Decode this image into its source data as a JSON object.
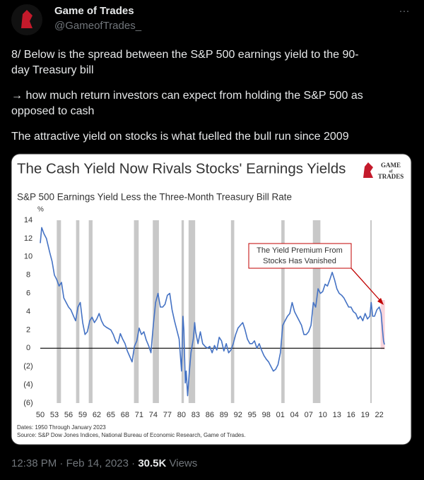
{
  "header": {
    "name": "Game of Trades",
    "handle": "@GameofTrades_",
    "menu": "···"
  },
  "tweet_lines": [
    "8/ Below is the spread between the S&P 500 earnings yield to the 90-",
    "day Treasury bill",
    "→ how much return investors can expect from holding the S&P 500 as",
    "opposed to cash",
    "The attractive yield on stocks is what fuelled the bull run since 2009"
  ],
  "footer": {
    "time": "12:38 PM",
    "separator": "·",
    "date": "Feb 14, 2023",
    "views": "30.5K",
    "views_label": "Views"
  },
  "chart_data": {
    "type": "line",
    "title": "The Cash Yield Now Rivals Stocks' Earnings Yields",
    "logo_text": [
      "GAME",
      "of",
      "TRADES"
    ],
    "subtitle": "S&P 500 Earnings Yield Less the Three-Month Treasury Bill Rate",
    "y_unit": "%",
    "notes": [
      "Dates: 1950 Through January 2023",
      "Source: S&P Dow Jones Indices, National Bureau of Economic Research, Game of Trades."
    ],
    "annotation": [
      "The Yield Premium From",
      "Stocks Has Vanished"
    ],
    "x": [
      1950,
      1950.3,
      1950.8,
      1951.3,
      1952,
      1952.5,
      1953,
      1953.5,
      1954,
      1954.5,
      1955,
      1955.5,
      1956,
      1956.5,
      1957,
      1957.5,
      1958,
      1958.5,
      1959,
      1959.5,
      1960,
      1960.5,
      1961,
      1961.5,
      1962,
      1962.5,
      1963,
      1963.5,
      1964,
      1965,
      1965.5,
      1966,
      1966.5,
      1967,
      1967.5,
      1968,
      1968.5,
      1969,
      1969.5,
      1970,
      1970.5,
      1971,
      1971.5,
      1972,
      1972.5,
      1973,
      1973.5,
      1974,
      1974.5,
      1975,
      1975.5,
      1976,
      1976.5,
      1977,
      1977.5,
      1978,
      1978.5,
      1979,
      1979.5,
      1980,
      1980.3,
      1980.5,
      1980.8,
      1981,
      1981.3,
      1981.6,
      1982,
      1982.5,
      1982.8,
      1983,
      1983.5,
      1984,
      1984.5,
      1985,
      1985.5,
      1986,
      1986.5,
      1987,
      1987.5,
      1988,
      1988.5,
      1989,
      1989.5,
      1990,
      1990.5,
      1991,
      1991.5,
      1992,
      1992.5,
      1993,
      1993.5,
      1994,
      1994.5,
      1995,
      1995.5,
      1996,
      1996.5,
      1997,
      1997.5,
      1998,
      1998.5,
      1999,
      1999.5,
      2000,
      2000.5,
      2001,
      2001.5,
      2002,
      2002.5,
      2003,
      2003.5,
      2004,
      2004.5,
      2005,
      2005.5,
      2006,
      2006.5,
      2007,
      2007.5,
      2008,
      2008.5,
      2009,
      2009.5,
      2010,
      2010.5,
      2011,
      2011.5,
      2012,
      2012.5,
      2013,
      2013.5,
      2014,
      2014.5,
      2015,
      2015.5,
      2016,
      2016.5,
      2017,
      2017.5,
      2018,
      2018.5,
      2019,
      2019.5,
      2020,
      2020.3,
      2020.6,
      2021,
      2021.5,
      2022,
      2022.4,
      2022.7,
      2022.9,
      2023.1
    ],
    "series": [
      {
        "name": "S&P 500 Earnings Yield Less T-Bill",
        "color": "#4472c4",
        "values": [
          11.5,
          13.2,
          12.5,
          12.0,
          10.5,
          9.5,
          8.0,
          7.5,
          6.8,
          7.2,
          5.5,
          5.0,
          4.5,
          4.2,
          3.6,
          3.0,
          4.5,
          5.0,
          2.8,
          1.5,
          1.8,
          3.0,
          3.4,
          2.8,
          3.2,
          3.8,
          3.0,
          2.5,
          2.3,
          2.0,
          1.5,
          0.8,
          0.5,
          1.6,
          1.0,
          0.5,
          -0.3,
          -0.9,
          -1.5,
          0.2,
          0.8,
          2.2,
          1.5,
          1.8,
          0.9,
          0.3,
          -0.5,
          2.5,
          5.0,
          6.0,
          4.5,
          4.5,
          4.8,
          5.8,
          6.0,
          4.2,
          3.0,
          2.0,
          1.0,
          -2.5,
          3.5,
          2.0,
          -3.8,
          -2.5,
          -5.2,
          -3.0,
          -0.5,
          1.0,
          2.8,
          1.8,
          0.5,
          1.8,
          0.5,
          0.2,
          0.0,
          0.2,
          -0.5,
          0.3,
          -0.2,
          1.2,
          0.8,
          -0.3,
          0.5,
          -0.5,
          -0.2,
          0.5,
          1.5,
          2.2,
          2.5,
          2.8,
          2.0,
          1.0,
          0.5,
          0.5,
          0.8,
          0.0,
          0.5,
          -0.2,
          -0.8,
          -1.2,
          -1.5,
          -2.0,
          -2.5,
          -2.3,
          -1.8,
          -0.5,
          2.5,
          3.0,
          3.5,
          3.8,
          5.0,
          4.0,
          3.5,
          3.0,
          2.5,
          1.5,
          1.5,
          1.8,
          2.5,
          5.0,
          4.5,
          6.5,
          6.0,
          6.2,
          7.0,
          6.8,
          7.5,
          8.3,
          7.5,
          6.5,
          6.0,
          5.8,
          5.5,
          5.0,
          4.5,
          4.5,
          4.0,
          3.8,
          3.2,
          3.5,
          3.0,
          3.8,
          3.2,
          3.5,
          5.0,
          3.5,
          3.5,
          4.2,
          4.5,
          3.8,
          2.0,
          0.8,
          0.4
        ]
      }
    ],
    "recessions": [
      [
        1953.5,
        1954.4
      ],
      [
        1957.6,
        1958.3
      ],
      [
        1960.3,
        1961.1
      ],
      [
        1969.9,
        1970.9
      ],
      [
        1973.9,
        1975.2
      ],
      [
        1980.0,
        1980.5
      ],
      [
        1981.5,
        1982.9
      ],
      [
        1990.5,
        1991.2
      ],
      [
        2001.2,
        2001.9
      ],
      [
        2007.9,
        2009.5
      ],
      [
        2020.1,
        2020.4
      ]
    ],
    "highlight": [
      2022.3,
      2023.2
    ],
    "xlim": [
      1950,
      2023.1
    ],
    "ylim": [
      -6,
      14
    ],
    "xticks": [
      {
        "value": 1950,
        "label": "50"
      },
      {
        "value": 1953,
        "label": "53"
      },
      {
        "value": 1956,
        "label": "56"
      },
      {
        "value": 1959,
        "label": "59"
      },
      {
        "value": 1962,
        "label": "62"
      },
      {
        "value": 1965,
        "label": "65"
      },
      {
        "value": 1968,
        "label": "68"
      },
      {
        "value": 1971,
        "label": "71"
      },
      {
        "value": 1974,
        "label": "74"
      },
      {
        "value": 1977,
        "label": "77"
      },
      {
        "value": 1980,
        "label": "80"
      },
      {
        "value": 1983,
        "label": "83"
      },
      {
        "value": 1986,
        "label": "86"
      },
      {
        "value": 1989,
        "label": "89"
      },
      {
        "value": 1992,
        "label": "92"
      },
      {
        "value": 1995,
        "label": "95"
      },
      {
        "value": 1998,
        "label": "98"
      },
      {
        "value": 2001,
        "label": "01"
      },
      {
        "value": 2004,
        "label": "04"
      },
      {
        "value": 2007,
        "label": "07"
      },
      {
        "value": 2010,
        "label": "10"
      },
      {
        "value": 2013,
        "label": "13"
      },
      {
        "value": 2016,
        "label": "16"
      },
      {
        "value": 2019,
        "label": "19"
      },
      {
        "value": 2022,
        "label": "22"
      }
    ],
    "yticks": [
      14,
      12,
      10,
      8,
      6,
      4,
      2,
      0,
      {
        "value": -2,
        "label": "(2)"
      },
      {
        "value": -4,
        "label": "(4)"
      },
      {
        "value": -6,
        "label": "(6)"
      }
    ],
    "grid": false
  }
}
